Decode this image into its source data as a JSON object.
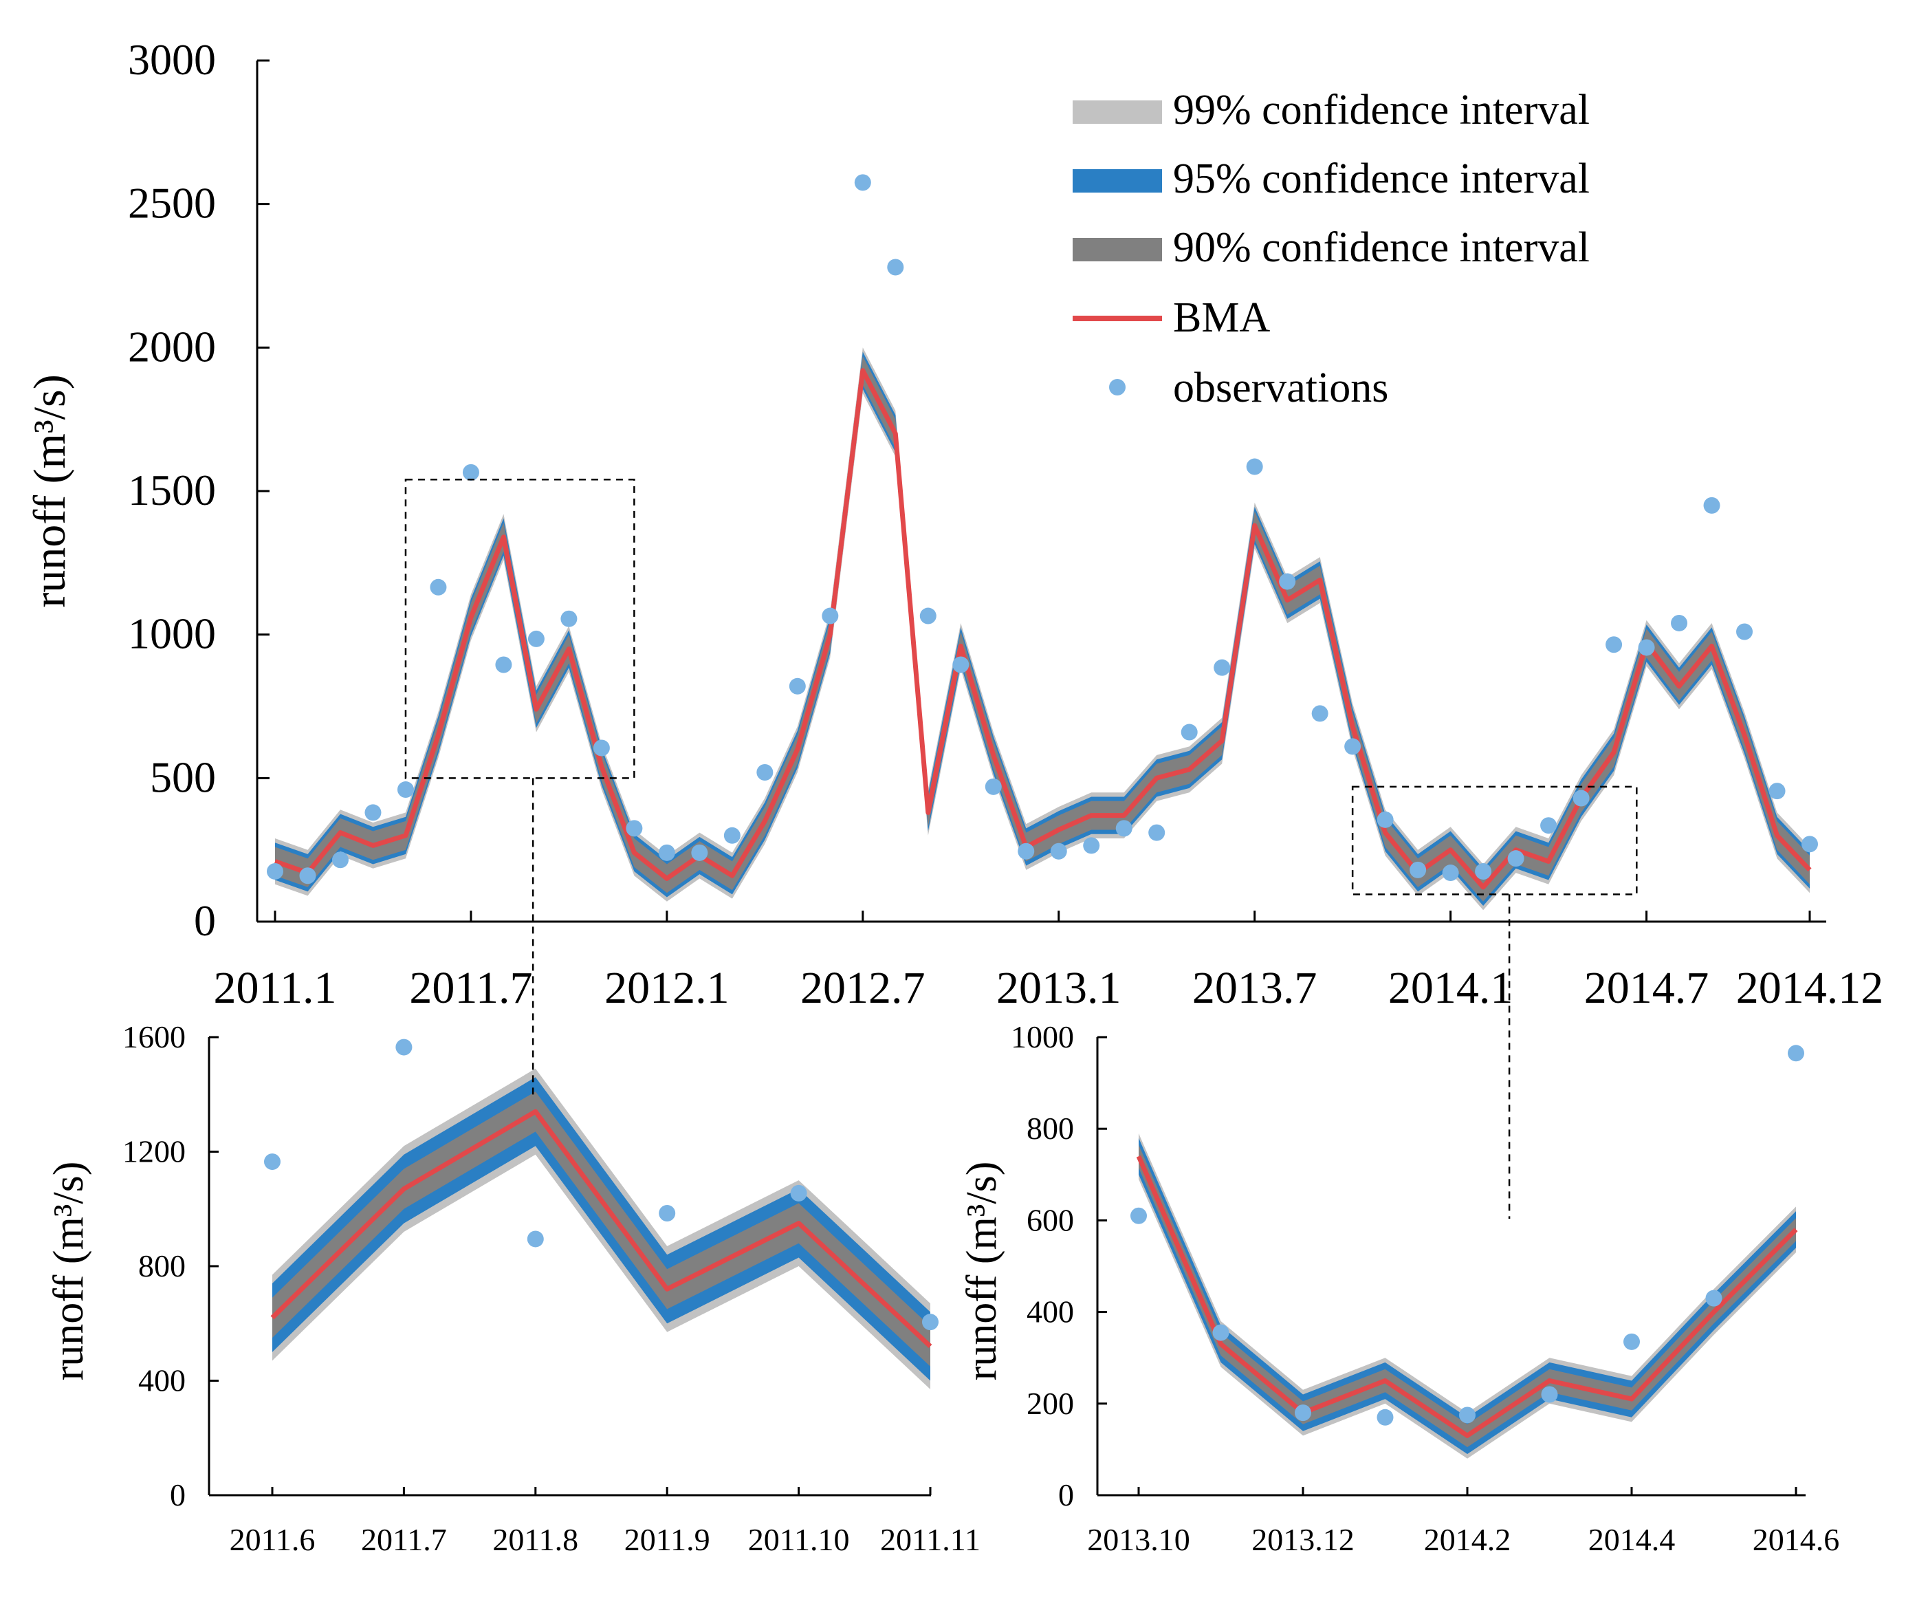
{
  "colors": {
    "ci99": "#c2c2c2",
    "ci95": "#2a7fc4",
    "ci90": "#808080",
    "bma": "#e2484a",
    "obs": "#7ab3e3"
  },
  "legend": {
    "ci99": "99% confidence interval",
    "ci95": "95% confidence interval",
    "ci90": "90% confidence interval",
    "bma": "BMA",
    "obs": "observations"
  },
  "chart_data": [
    {
      "type": "line",
      "title": "",
      "ylabel": "runoff (m³/s)",
      "ylim": [
        0,
        3000
      ],
      "yticks": [
        "0",
        "500",
        "1000",
        "1500",
        "2000",
        "2500",
        "3000"
      ],
      "xtick_labels": [
        "2011.1",
        "2011.7",
        "2012.1",
        "2012.7",
        "2013.1",
        "2013.7",
        "2014.1",
        "2014.7",
        "2014.12"
      ],
      "xtick_months": [
        0,
        6,
        12,
        18,
        24,
        30,
        36,
        42,
        47
      ],
      "x_months": [
        0,
        1,
        2,
        3,
        4,
        5,
        6,
        7,
        8,
        9,
        10,
        11,
        12,
        13,
        14,
        15,
        16,
        17,
        18,
        19,
        20,
        21,
        22,
        23,
        24,
        25,
        26,
        27,
        28,
        29,
        30,
        31,
        32,
        33,
        34,
        35,
        36,
        37,
        38,
        39,
        40,
        41,
        42,
        43,
        44,
        45,
        46,
        47
      ],
      "series": [
        {
          "name": "BMA",
          "values": [
            210,
            170,
            310,
            265,
            300,
            650,
            1060,
            1340,
            740,
            950,
            540,
            240,
            150,
            230,
            160,
            350,
            600,
            1000,
            1920,
            1700,
            380,
            960,
            580,
            260,
            320,
            370,
            370,
            500,
            530,
            630,
            1380,
            1120,
            1190,
            680,
            310,
            170,
            250,
            120,
            250,
            210,
            430,
            590,
            970,
            820,
            960,
            650,
            300,
            180
          ]
        },
        {
          "name": "observations",
          "values": [
            175,
            160,
            215,
            380,
            460,
            1165,
            1565,
            895,
            985,
            1055,
            605,
            325,
            240,
            240,
            300,
            520,
            820,
            1065,
            2575,
            2280,
            1065,
            895,
            470,
            245,
            245,
            265,
            325,
            310,
            660,
            885,
            1585,
            1185,
            725,
            610,
            355,
            180,
            170,
            175,
            220,
            335,
            430,
            965,
            955,
            1040,
            1450,
            1010,
            455,
            270
          ]
        }
      ],
      "ci_half_width": {
        "ci90": 50,
        "ci95": 65,
        "ci99": 80
      },
      "zoom_boxes": [
        {
          "month_from": 4,
          "month_to": 11,
          "value_from": 500,
          "value_to": 1540
        },
        {
          "month_from": 33,
          "month_to": 41.7,
          "value_from": 95,
          "value_to": 470
        }
      ]
    },
    {
      "type": "line",
      "ylabel": "runoff (m³/s)",
      "ylim": [
        0,
        1600
      ],
      "yticks": [
        "0",
        "400",
        "800",
        "1200",
        "1600"
      ],
      "categories": [
        "2011.6",
        "2011.7",
        "2011.8",
        "2011.9",
        "2011.10",
        "2011.11"
      ],
      "series": [
        {
          "name": "BMA",
          "values": [
            620,
            1070,
            1340,
            720,
            950,
            520
          ]
        },
        {
          "name": "observations",
          "values": [
            1165,
            1565,
            895,
            985,
            1055,
            605
          ]
        }
      ],
      "ci_half_width": {
        "ci90": 70,
        "ci95": 120,
        "ci99": 150
      }
    },
    {
      "type": "line",
      "ylabel": "runoff (m³/s)",
      "ylim": [
        0,
        1000
      ],
      "yticks": [
        "0",
        "200",
        "400",
        "600",
        "800",
        "1000"
      ],
      "xtick_labels": [
        "2013.10",
        "2013.12",
        "2014.2",
        "2014.4",
        "2014.6"
      ],
      "categories_all": [
        "2013.10",
        "2013.11",
        "2013.12",
        "2014.1",
        "2014.2",
        "2014.3",
        "2014.4",
        "2014.5",
        "2014.6"
      ],
      "series": [
        {
          "name": "BMA",
          "values": [
            740,
            330,
            180,
            250,
            130,
            250,
            210,
            400,
            580
          ]
        },
        {
          "name": "observations",
          "values": [
            610,
            355,
            180,
            170,
            175,
            220,
            335,
            430,
            965
          ]
        }
      ],
      "ci_half_width": {
        "ci90": 25,
        "ci95": 40,
        "ci99": 50
      }
    }
  ]
}
